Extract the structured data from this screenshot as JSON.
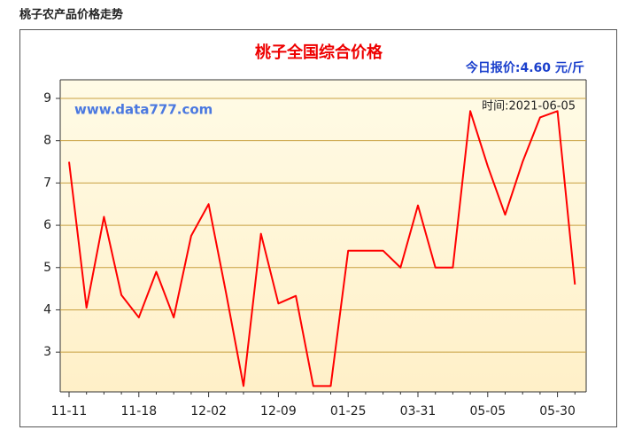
{
  "header": "桃子农产品价格走势",
  "chart_data": {
    "type": "line",
    "title": "桃子全国综合价格",
    "subtitle": "今日报价:4.60 元/斤",
    "watermark": "www.data777.com",
    "annotation": "时间:2021-06-05",
    "categories": [
      "11-11",
      null,
      null,
      null,
      "11-18",
      null,
      null,
      null,
      "12-02",
      null,
      null,
      null,
      "12-09",
      null,
      null,
      null,
      "01-25",
      null,
      null,
      null,
      "03-31",
      null,
      null,
      null,
      "05-05",
      null,
      null,
      null,
      "05-30",
      null
    ],
    "series": [
      {
        "color": "#ff0000",
        "values": [
          7.5,
          4.05,
          6.2,
          4.35,
          3.82,
          4.9,
          3.82,
          5.75,
          6.5,
          4.4,
          2.2,
          5.8,
          4.15,
          4.33,
          2.2,
          2.2,
          5.4,
          5.4,
          5.4,
          5.0,
          6.47,
          5.0,
          5.0,
          8.7,
          7.4,
          6.25,
          7.5,
          8.55,
          8.7,
          4.6
        ]
      }
    ],
    "ylim": [
      2.06,
      9.44
    ],
    "yticks": [
      3,
      4,
      5,
      6,
      7,
      8,
      9
    ],
    "grid": true,
    "grid_color": "#c8a040"
  }
}
